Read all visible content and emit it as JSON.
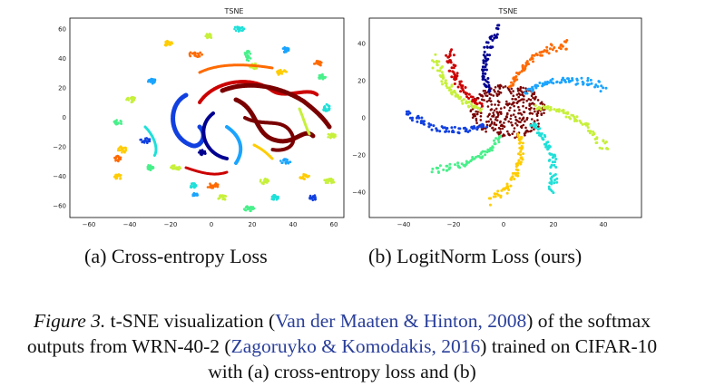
{
  "figure": {
    "panel_a": {
      "title": "TSNE",
      "sublabel": "(a) Cross-entropy Loss",
      "x_ticks": [
        "−60",
        "−40",
        "−20",
        "0",
        "20",
        "40",
        "60"
      ],
      "y_ticks": [
        "60",
        "40",
        "20",
        "0",
        "−20",
        "−40",
        "−60"
      ]
    },
    "panel_b": {
      "title": "TSNE",
      "sublabel": "(b) LogitNorm Loss (ours)",
      "x_ticks": [
        "−40",
        "−20",
        "0",
        "20",
        "40"
      ],
      "y_ticks": [
        "40",
        "20",
        "0",
        "−20",
        "−40"
      ]
    },
    "caption": {
      "label": "Figure 3.",
      "text1": " t-SNE visualization (",
      "cite1": "Van der Maaten & Hinton, 2008",
      "text2": ") of the softmax outputs from WRN-40-2 (",
      "cite2": "Zagoruyko & Komodakis, 2016",
      "text3": ") trained on CIFAR-10 with (a) cross-entropy loss and (b)"
    }
  },
  "colors": {
    "class_palette": [
      "#7a0000",
      "#cc0000",
      "#ff6a00",
      "#ffcc00",
      "#c6f03a",
      "#48f08a",
      "#1fe0d8",
      "#1aa4ff",
      "#1140e0",
      "#000090"
    ]
  }
}
